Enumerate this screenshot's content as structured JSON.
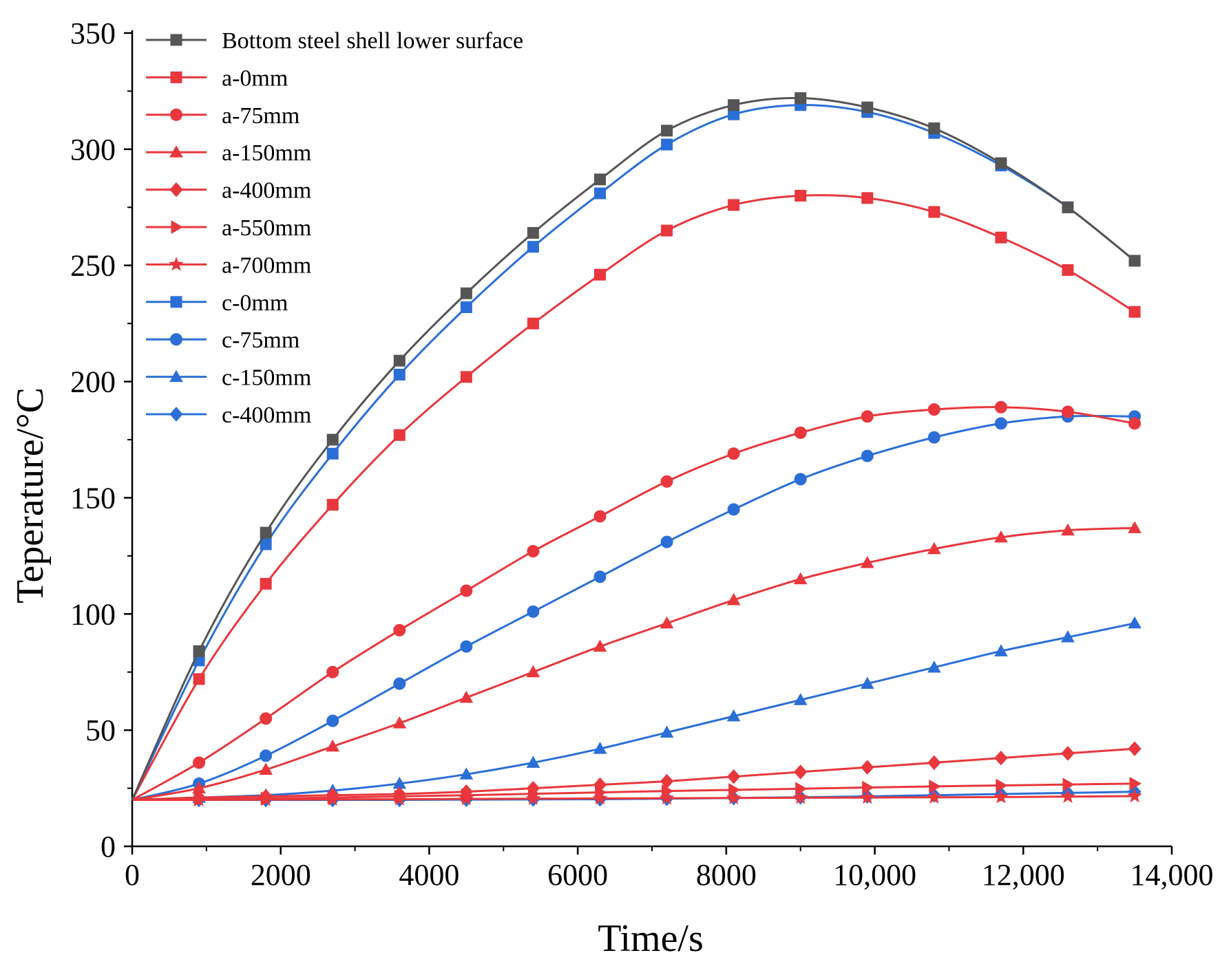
{
  "chart_data": {
    "type": "line",
    "title": "",
    "xlabel": "Time/s",
    "ylabel": "Teperature/°C",
    "xlim": [
      0,
      14000
    ],
    "ylim": [
      0,
      350
    ],
    "xticks": [
      0,
      2000,
      4000,
      6000,
      8000,
      10000,
      12000,
      14000
    ],
    "xtick_labels": [
      "0",
      "2000",
      "4000",
      "6000",
      "8000",
      "10,000",
      "12,000",
      "14,000"
    ],
    "yticks": [
      0,
      50,
      100,
      150,
      200,
      250,
      300,
      350
    ],
    "ytick_labels": [
      "0",
      "50",
      "100",
      "150",
      "200",
      "250",
      "300",
      "350"
    ],
    "grid": false,
    "legend_position": "top-left",
    "x": [
      0,
      900,
      1800,
      2700,
      3600,
      4500,
      5400,
      6300,
      7200,
      8100,
      9000,
      9900,
      10800,
      11700,
      12600,
      13500
    ],
    "series": [
      {
        "name": "Bottom steel shell lower surface",
        "color": "#555555",
        "marker": "square",
        "values": [
          20,
          84,
          135,
          175,
          209,
          238,
          264,
          287,
          308,
          319,
          322,
          318,
          309,
          294,
          275,
          252
        ]
      },
      {
        "name": "a-0mm",
        "color": "#e8373d",
        "marker": "square",
        "values": [
          20,
          72,
          113,
          147,
          177,
          202,
          225,
          246,
          265,
          276,
          280,
          279,
          273,
          262,
          248,
          230
        ]
      },
      {
        "name": "a-75mm",
        "color": "#e8373d",
        "marker": "circle",
        "values": [
          20,
          36,
          55,
          75,
          93,
          110,
          127,
          142,
          157,
          169,
          178,
          185,
          188,
          189,
          187,
          182
        ]
      },
      {
        "name": "a-150mm",
        "color": "#e8373d",
        "marker": "triangle",
        "values": [
          20,
          25,
          33,
          43,
          53,
          64,
          75,
          86,
          96,
          106,
          115,
          122,
          128,
          133,
          136,
          137
        ]
      },
      {
        "name": "a-400mm",
        "color": "#e8373d",
        "marker": "diamond",
        "values": [
          20,
          21,
          21.5,
          22,
          22.5,
          23.5,
          25,
          26.5,
          28,
          30,
          32,
          34,
          36,
          38,
          40,
          42
        ]
      },
      {
        "name": "a-550mm",
        "color": "#e8373d",
        "marker": "triangle-right",
        "values": [
          20,
          20.3,
          20.6,
          21,
          21.5,
          22,
          22.6,
          23.2,
          23.8,
          24.3,
          24.8,
          25.3,
          25.8,
          26.2,
          26.6,
          27
        ]
      },
      {
        "name": "a-700mm",
        "color": "#e8373d",
        "marker": "star",
        "values": [
          20,
          20,
          20.1,
          20.2,
          20.3,
          20.4,
          20.5,
          20.6,
          20.7,
          20.8,
          20.9,
          21,
          21.1,
          21.2,
          21.4,
          21.6
        ]
      },
      {
        "name": "c-0mm",
        "color": "#2b6fd6",
        "marker": "square",
        "values": [
          20,
          80,
          130,
          169,
          203,
          232,
          258,
          281,
          302,
          315,
          319,
          316,
          307,
          293,
          275,
          252
        ]
      },
      {
        "name": "c-75mm",
        "color": "#2b6fd6",
        "marker": "circle",
        "values": [
          20,
          27,
          39,
          54,
          70,
          86,
          101,
          116,
          131,
          145,
          158,
          168,
          176,
          182,
          185,
          185
        ]
      },
      {
        "name": "c-150mm",
        "color": "#2b6fd6",
        "marker": "triangle",
        "values": [
          20,
          21,
          22,
          24,
          27,
          31,
          36,
          42,
          49,
          56,
          63,
          70,
          77,
          84,
          90,
          96
        ]
      },
      {
        "name": "c-400mm",
        "color": "#2b6fd6",
        "marker": "diamond",
        "values": [
          20,
          20,
          20,
          20,
          20,
          20.1,
          20.2,
          20.3,
          20.5,
          20.8,
          21.1,
          21.5,
          22,
          22.5,
          23,
          23.5
        ]
      }
    ]
  }
}
